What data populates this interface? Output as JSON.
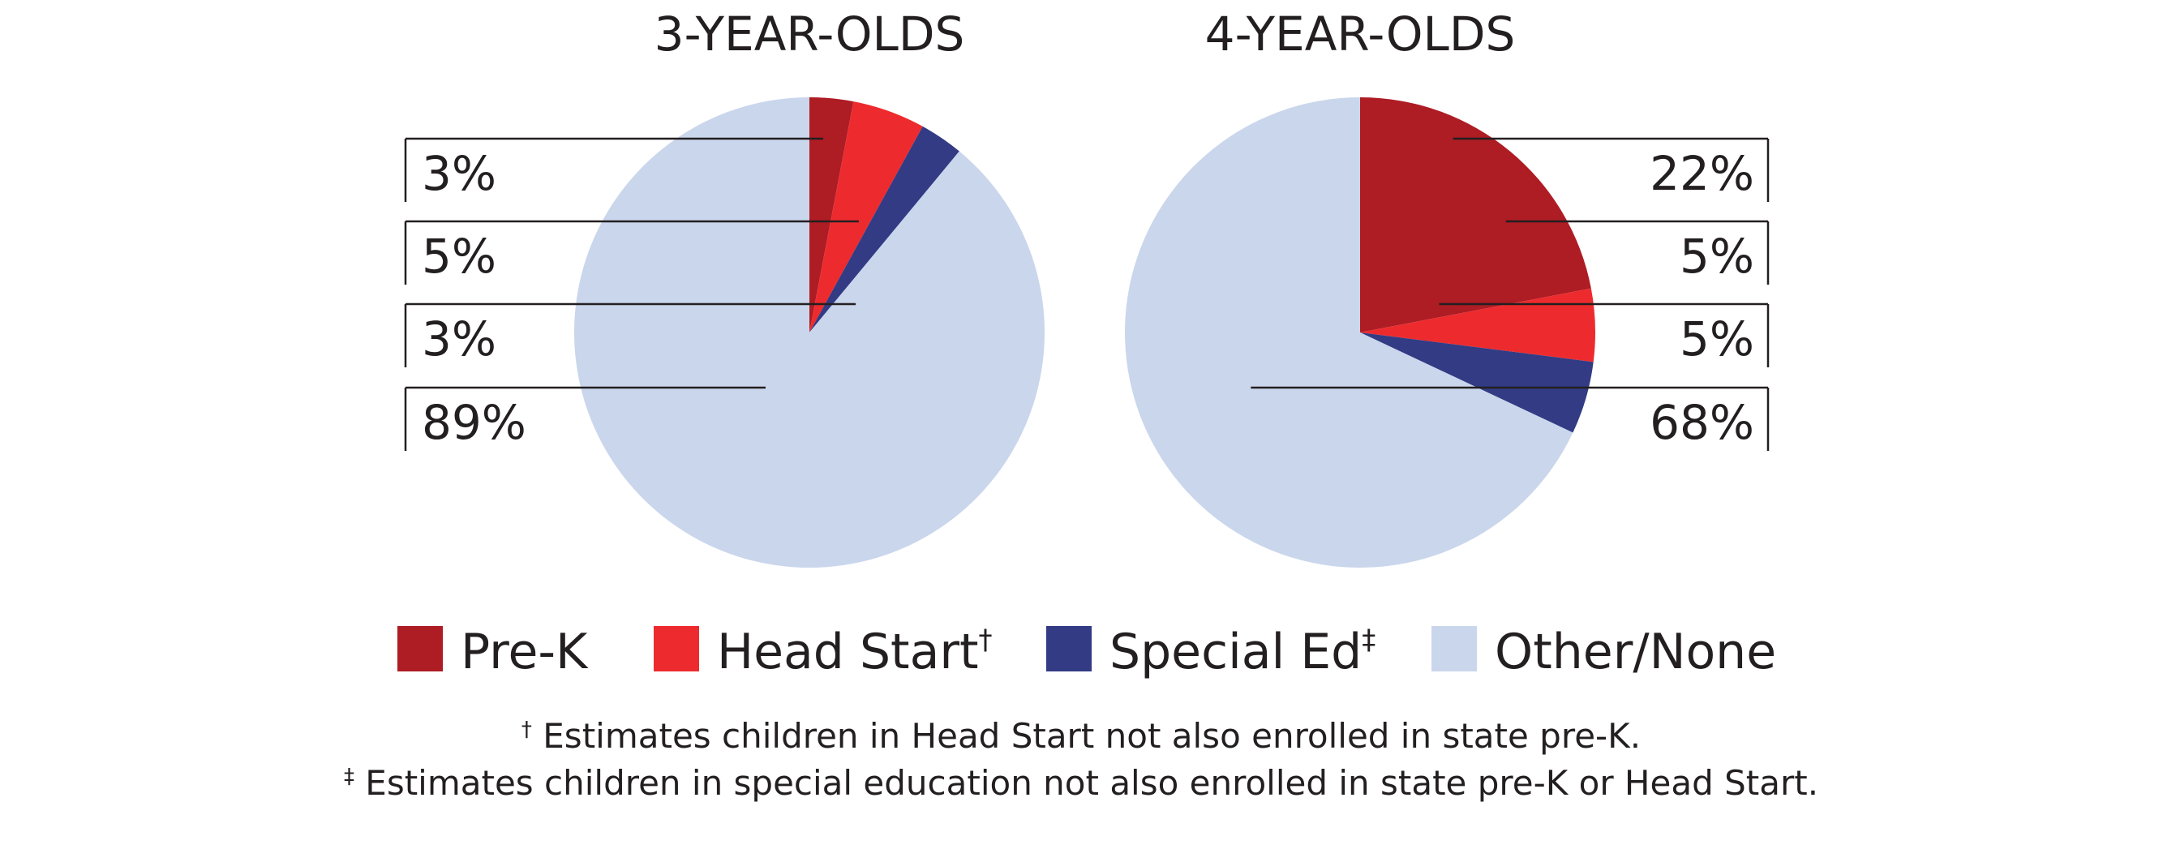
{
  "colors": {
    "prek": "#ae1c24",
    "head_start": "#ed2b2e",
    "special_ed": "#323b84",
    "other": "#cad6ec",
    "line": "#231f20"
  },
  "chart_data": [
    {
      "type": "pie",
      "title": "3-YEAR-OLDS",
      "labels": [
        "Pre-K",
        "Head Start",
        "Special Ed",
        "Other/None"
      ],
      "values": [
        3,
        5,
        3,
        89
      ],
      "value_labels": [
        "3%",
        "5%",
        "3%",
        "89%"
      ],
      "label_side": "left"
    },
    {
      "type": "pie",
      "title": "4-YEAR-OLDS",
      "labels": [
        "Pre-K",
        "Head Start",
        "Special Ed",
        "Other/None"
      ],
      "values": [
        22,
        5,
        5,
        68
      ],
      "value_labels": [
        "22%",
        "5%",
        "5%",
        "68%"
      ],
      "label_side": "right"
    }
  ],
  "legend": [
    {
      "label": "Pre-K",
      "sup": "",
      "color_key": "prek"
    },
    {
      "label": "Head Start",
      "sup": "†",
      "color_key": "head_start"
    },
    {
      "label": "Special Ed",
      "sup": "‡",
      "color_key": "special_ed"
    },
    {
      "label": "Other/None",
      "sup": "",
      "color_key": "other"
    }
  ],
  "footnotes": [
    {
      "mark": "†",
      "text": " Estimates children in Head Start not also enrolled in state pre-K."
    },
    {
      "mark": "‡",
      "text": " Estimates children in special education not also enrolled in state pre-K or Head Start."
    }
  ]
}
